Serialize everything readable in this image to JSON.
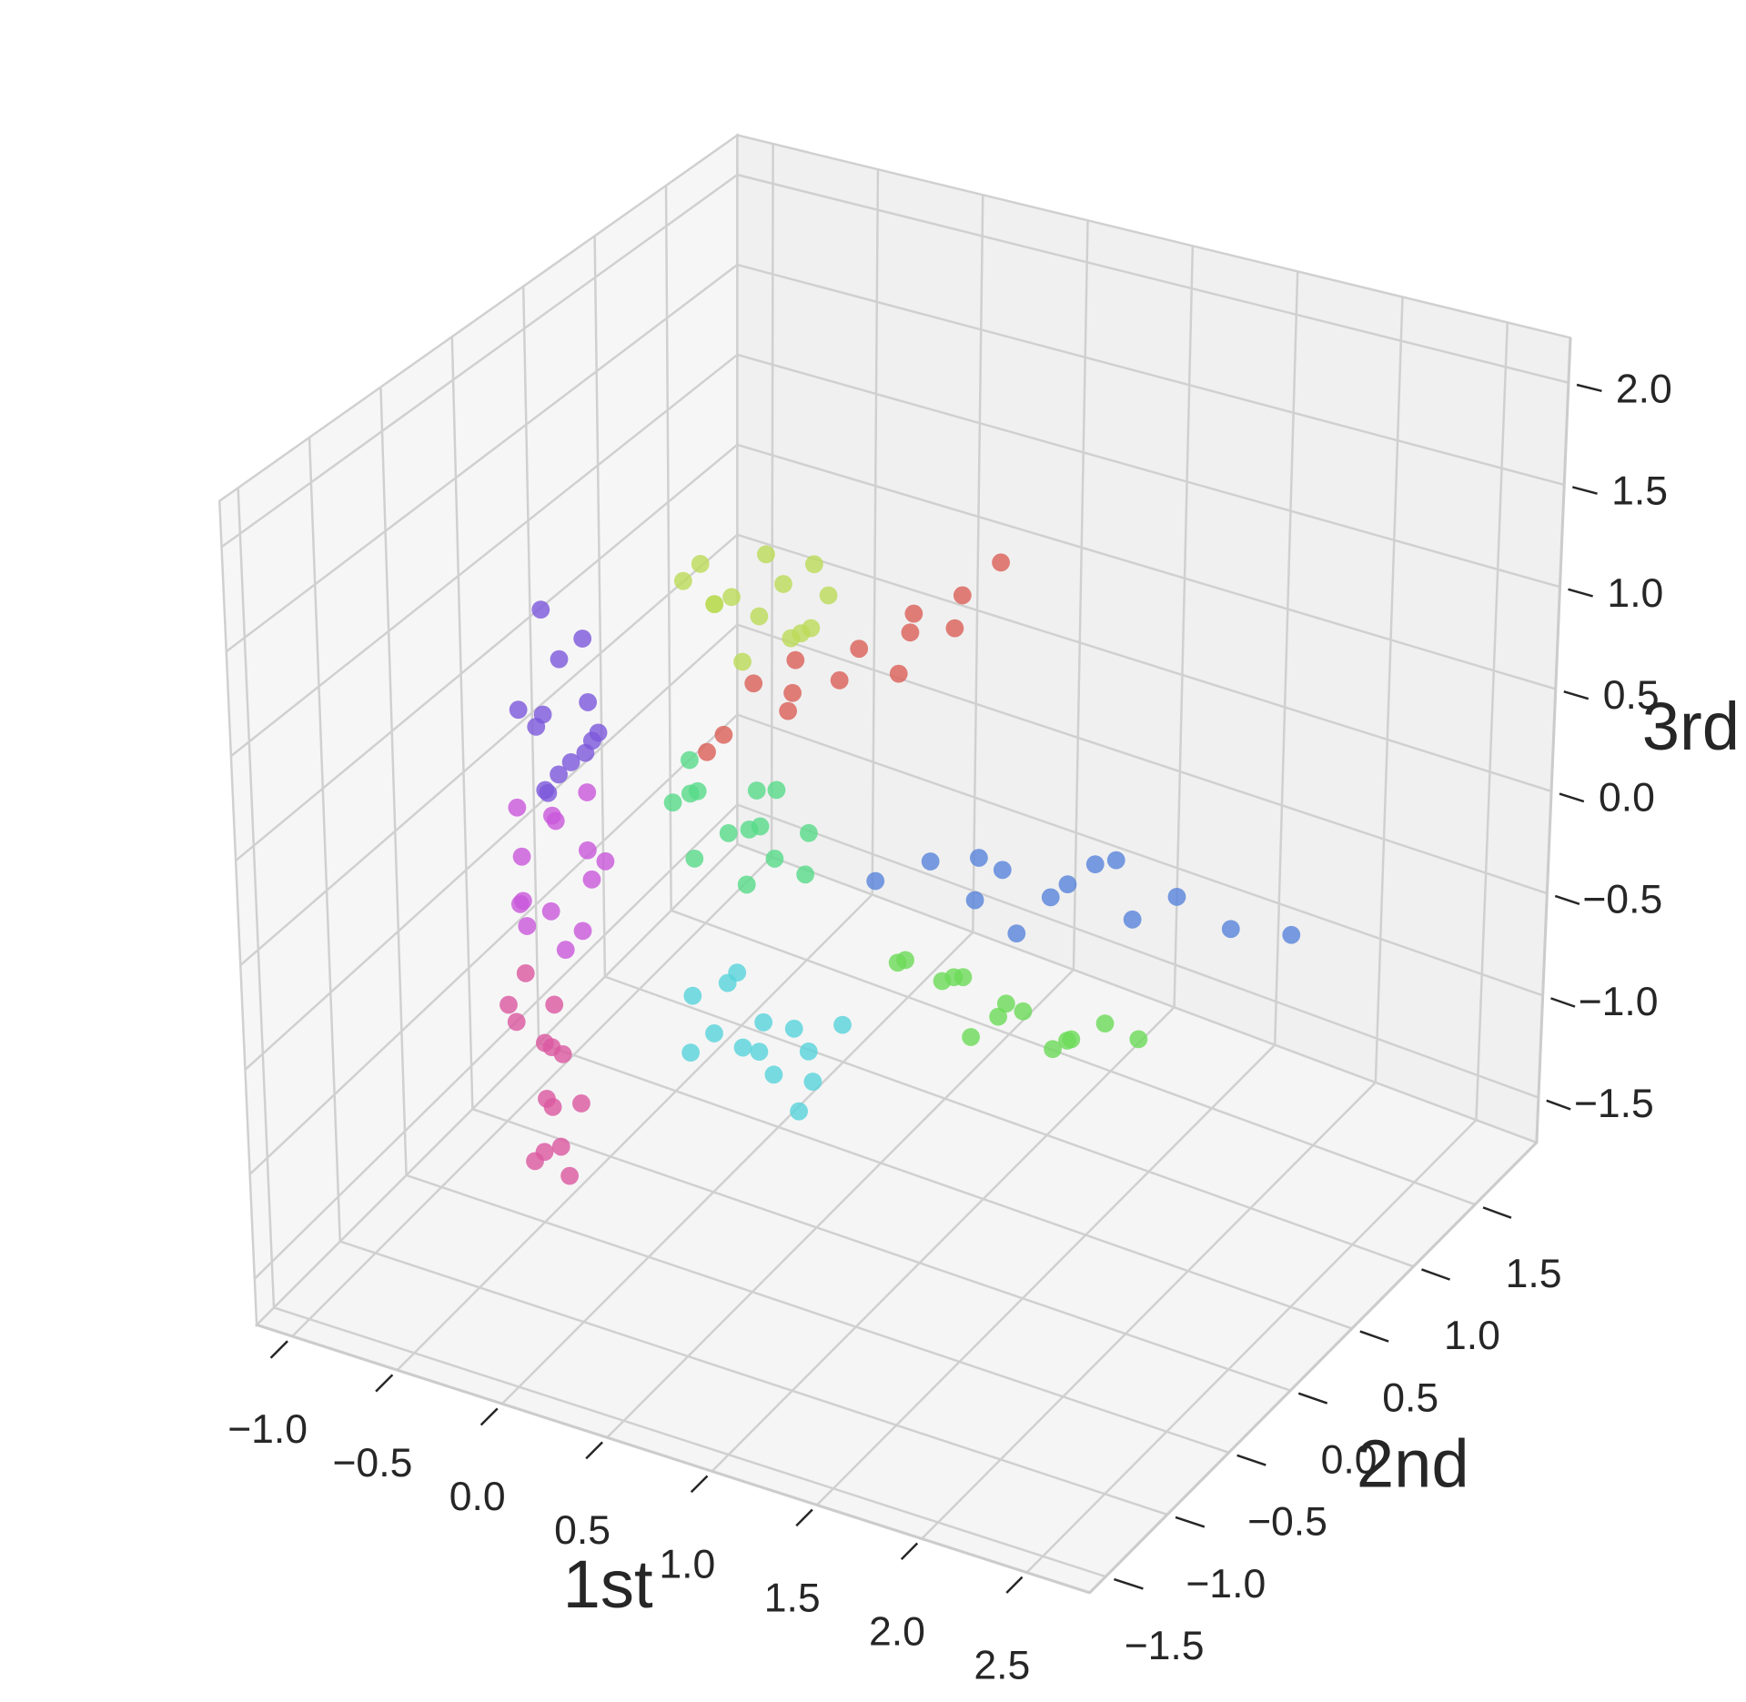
{
  "chart_data": {
    "type": "scatter3d",
    "xlabel": "1st",
    "ylabel": "2nd",
    "zlabel": "3rd",
    "xlim": [
      -1.17,
      2.8
    ],
    "ylim": [
      -1.63,
      2.0
    ],
    "zlim": [
      -1.72,
      2.22
    ],
    "xticks": [
      {
        "value": -1.0,
        "label": "−1.0"
      },
      {
        "value": -0.5,
        "label": "−0.5"
      },
      {
        "value": 0.0,
        "label": "0.0"
      },
      {
        "value": 0.5,
        "label": "0.5"
      },
      {
        "value": 1.0,
        "label": "1.0"
      },
      {
        "value": 1.5,
        "label": "1.5"
      },
      {
        "value": 2.0,
        "label": "2.0"
      },
      {
        "value": 2.5,
        "label": "2.5"
      }
    ],
    "yticks": [
      {
        "value": -1.5,
        "label": "−1.5"
      },
      {
        "value": -1.0,
        "label": "−1.0"
      },
      {
        "value": -0.5,
        "label": "−0.5"
      },
      {
        "value": 0.0,
        "label": "0.0"
      },
      {
        "value": 0.5,
        "label": "0.5"
      },
      {
        "value": 1.0,
        "label": "1.0"
      },
      {
        "value": 1.5,
        "label": "1.5"
      }
    ],
    "zticks": [
      {
        "value": -1.5,
        "label": "−1.5"
      },
      {
        "value": -1.0,
        "label": "−1.0"
      },
      {
        "value": -0.5,
        "label": "−0.5"
      },
      {
        "value": 0.0,
        "label": "0.0"
      },
      {
        "value": 0.5,
        "label": "0.5"
      },
      {
        "value": 1.0,
        "label": "1.0"
      },
      {
        "value": 1.5,
        "label": "1.5"
      },
      {
        "value": 2.0,
        "label": "2.0"
      }
    ],
    "grid": true,
    "series": [
      {
        "color": "#bcdb57",
        "x": [
          -0.9,
          -0.75,
          -0.6,
          -0.45,
          -0.3,
          -0.2,
          -0.85,
          -0.65,
          -0.5,
          -0.35,
          -0.55,
          -0.7,
          -0.25,
          -0.4
        ],
        "y": [
          1.2,
          1.1,
          1.3,
          1.25,
          1.15,
          1.2,
          1.35,
          1.05,
          1.2,
          1.3,
          1.1,
          1.25,
          1.0,
          1.4
        ],
        "z": [
          0.35,
          0.55,
          0.2,
          0.45,
          0.3,
          0.5,
          0.15,
          0.4,
          0.62,
          0.22,
          0.1,
          0.3,
          0.38,
          0.48
        ]
      },
      {
        "color": "#6cdb57",
        "x": [
          0.9,
          1.05,
          1.2,
          1.35,
          1.5,
          1.65,
          1.8,
          1.0,
          1.25,
          1.45,
          1.7,
          1.15,
          1.55,
          1.9
        ],
        "y": [
          0.0,
          0.1,
          -0.05,
          0.05,
          0.0,
          0.1,
          0.15,
          -0.1,
          0.0,
          -0.05,
          0.05,
          0.1,
          0.15,
          0.25
        ],
        "z": [
          -0.3,
          -0.4,
          -0.25,
          -0.45,
          -0.35,
          -0.5,
          -0.4,
          -0.2,
          -0.55,
          -0.3,
          -0.45,
          -0.35,
          -0.6,
          -0.5
        ]
      },
      {
        "color": "#57db8a",
        "x": [
          -0.3,
          -0.15,
          0.0,
          0.15,
          0.3,
          -0.2,
          -0.05,
          0.1,
          0.25,
          -0.25,
          0.05,
          0.2,
          -0.1,
          0.35
        ],
        "y": [
          0.2,
          0.1,
          0.3,
          0.15,
          0.25,
          0.2,
          0.0,
          0.35,
          0.1,
          0.25,
          0.2,
          0.05,
          0.3,
          0.2
        ],
        "z": [
          0.0,
          0.15,
          -0.1,
          0.05,
          -0.2,
          -0.25,
          0.25,
          0.1,
          -0.05,
          0.2,
          -0.3,
          0.3,
          -0.15,
          0.05
        ]
      },
      {
        "color": "#57d3db",
        "x": [
          0.3,
          0.45,
          0.6,
          0.75,
          0.9,
          0.4,
          0.55,
          0.7,
          0.85,
          0.5,
          0.65,
          0.95,
          0.35,
          0.8
        ],
        "y": [
          -0.6,
          -0.5,
          -0.7,
          -0.55,
          -0.65,
          -0.6,
          -0.5,
          -0.7,
          -0.6,
          -0.65,
          -0.55,
          -0.5,
          -0.7,
          -0.6
        ],
        "z": [
          -0.3,
          -0.2,
          -0.4,
          -0.35,
          -0.5,
          -0.45,
          -0.55,
          -0.25,
          -0.4,
          -0.15,
          -0.6,
          -0.3,
          -0.5,
          -0.7
        ]
      },
      {
        "color": "#5783db",
        "x": [
          0.7,
          0.9,
          1.05,
          1.15,
          1.25,
          1.35,
          1.5,
          1.65,
          1.8,
          2.0,
          2.2,
          1.1,
          1.4,
          1.6
        ],
        "y": [
          0.15,
          0.25,
          0.35,
          0.4,
          0.35,
          0.45,
          0.55,
          0.6,
          0.7,
          0.8,
          0.95,
          0.3,
          0.5,
          0.55
        ],
        "z": [
          -0.05,
          0.05,
          -0.15,
          0.0,
          -0.25,
          -0.1,
          0.05,
          -0.2,
          -0.1,
          -0.25,
          -0.3,
          0.1,
          -0.05,
          0.1
        ]
      },
      {
        "color": "#7c57db",
        "x": [
          -0.85,
          -0.75,
          -0.65,
          -0.55,
          -0.8,
          -0.7,
          -0.6,
          -0.9,
          -0.72,
          -0.62,
          -0.78,
          -0.52,
          -0.68,
          -0.95
        ],
        "y": [
          0.05,
          -0.05,
          0.1,
          0.0,
          0.15,
          -0.1,
          0.05,
          0.0,
          0.2,
          -0.05,
          0.1,
          0.0,
          -0.15,
          0.25
        ],
        "z": [
          0.3,
          0.45,
          0.2,
          0.35,
          0.6,
          0.1,
          0.5,
          0.4,
          0.7,
          0.25,
          0.05,
          0.4,
          0.15,
          0.75
        ]
      },
      {
        "color": "#c957db",
        "x": [
          -0.7,
          -0.6,
          -0.5,
          -0.4,
          -0.65,
          -0.55,
          -0.45,
          -0.35,
          -0.75,
          -0.5,
          -0.6,
          -0.3,
          -0.48,
          -0.68
        ],
        "y": [
          -0.3,
          -0.2,
          -0.4,
          -0.25,
          -0.35,
          -0.3,
          -0.2,
          -0.4,
          -0.25,
          -0.3,
          -0.45,
          -0.3,
          -0.15,
          -0.35
        ],
        "z": [
          -0.1,
          0.05,
          -0.25,
          -0.15,
          -0.4,
          0.15,
          -0.05,
          -0.3,
          0.1,
          -0.5,
          -0.2,
          0.0,
          0.2,
          -0.3
        ]
      },
      {
        "color": "#db57a0",
        "x": [
          -0.3,
          -0.2,
          -0.1,
          -0.25,
          -0.15,
          -0.35,
          -0.22,
          -0.12,
          -0.28,
          -0.18,
          -0.05,
          -0.32,
          -0.2,
          -0.25
        ],
        "y": [
          -0.9,
          -0.85,
          -0.95,
          -0.8,
          -1.0,
          -0.9,
          -0.85,
          -0.95,
          -0.9,
          -0.8,
          -0.9,
          -1.0,
          -0.95,
          -0.85
        ],
        "z": [
          -0.2,
          -0.35,
          -0.5,
          -0.6,
          -0.7,
          -0.45,
          -0.85,
          -0.95,
          -1.1,
          -1.2,
          -0.75,
          -0.3,
          -1.0,
          -0.55
        ]
      },
      {
        "color": "#db5f57",
        "x": [
          -0.56,
          -0.38,
          -0.2,
          -0.08,
          0.1,
          0.22,
          0.4,
          0.52,
          0.7,
          0.85,
          0.0,
          0.3,
          -0.3,
          0.6
        ],
        "y": [
          0.85,
          0.7,
          0.9,
          0.75,
          0.82,
          0.78,
          0.88,
          0.72,
          0.8,
          0.85,
          0.65,
          0.95,
          0.8,
          0.9
        ],
        "z": [
          -0.22,
          0.02,
          0.08,
          0.3,
          0.38,
          0.6,
          0.68,
          0.9,
          1.0,
          1.18,
          0.55,
          0.4,
          0.25,
          0.75
        ]
      }
    ]
  }
}
